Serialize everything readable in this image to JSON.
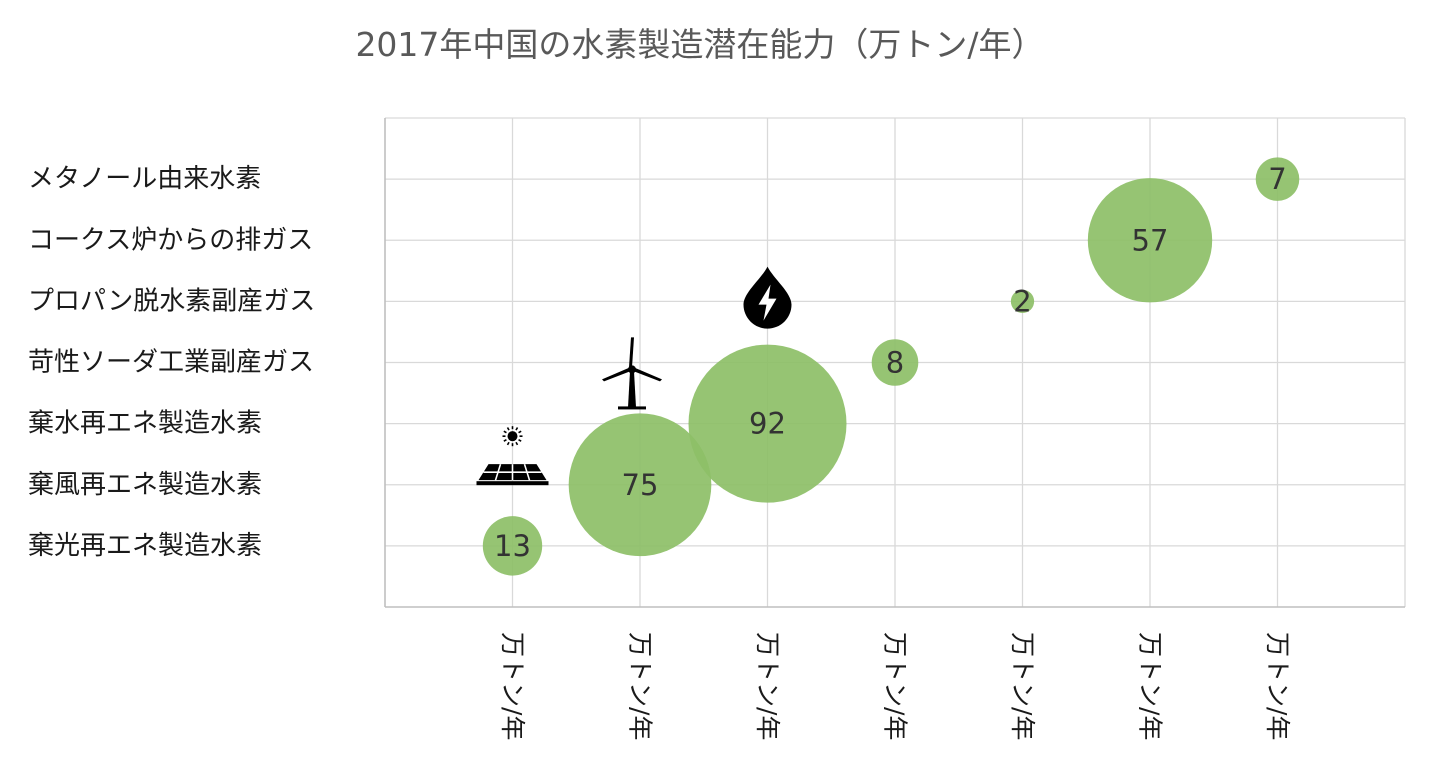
{
  "chart_data": {
    "type": "scatter",
    "variant": "bubble",
    "title": "2017年中国の水素製造潜在能力（万トン/年）",
    "categories": [
      "棄光再エネ製造水素",
      "棄風再エネ製造水素",
      "棄水再エネ製造水素",
      "苛性ソーダ工業副産ガス",
      "プロパン脱水素副産ガス",
      "コークス炉からの排ガス",
      "メタノール由来水素"
    ],
    "x_tick_labels": [
      "万トン/年",
      "万トン/年",
      "万トン/年",
      "万トン/年",
      "万トン/年",
      "万トン/年",
      "万トン/年"
    ],
    "points": [
      {
        "x": 1,
        "y": 1,
        "size": 13,
        "label": "13",
        "icon": "solar-panel-icon"
      },
      {
        "x": 2,
        "y": 2,
        "size": 75,
        "label": "75",
        "icon": "wind-turbine-icon"
      },
      {
        "x": 3,
        "y": 3,
        "size": 92,
        "label": "92",
        "icon": "hydro-drop-bolt-icon"
      },
      {
        "x": 4,
        "y": 4,
        "size": 8,
        "label": "8"
      },
      {
        "x": 5,
        "y": 5,
        "size": 2,
        "label": "2"
      },
      {
        "x": 6,
        "y": 6,
        "size": 57,
        "label": "57"
      },
      {
        "x": 7,
        "y": 7,
        "size": 7,
        "label": "7"
      }
    ],
    "xlim": [
      0,
      8
    ],
    "ylim": [
      0,
      8
    ],
    "grid": true,
    "legend": "none",
    "colors": {
      "bubble": "#8dbf67",
      "grid": "#d9d9d9",
      "axis": "#bfbfbf",
      "icon": "#000000"
    }
  }
}
